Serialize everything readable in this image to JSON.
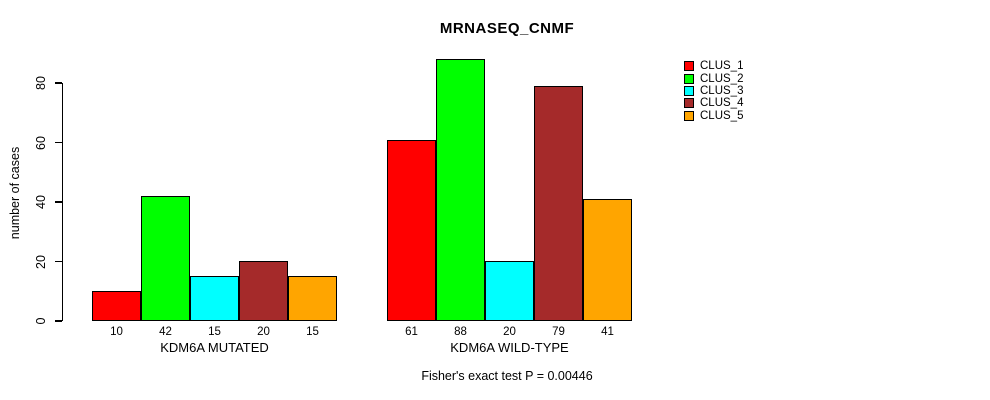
{
  "chart_data": {
    "type": "bar",
    "title": "MRNASEQ_CNMF",
    "ylabel": "number of cases",
    "xlabel": "",
    "categories": [
      "KDM6A MUTATED",
      "KDM6A WILD-TYPE"
    ],
    "series": [
      {
        "name": "CLUS_1",
        "color": "#ff0000",
        "values": [
          10,
          61
        ]
      },
      {
        "name": "CLUS_2",
        "color": "#00ff00",
        "values": [
          42,
          88
        ]
      },
      {
        "name": "CLUS_3",
        "color": "#00ffff",
        "values": [
          15,
          20
        ]
      },
      {
        "name": "CLUS_4",
        "color": "#a52a2a",
        "values": [
          20,
          79
        ]
      },
      {
        "name": "CLUS_5",
        "color": "#ffa500",
        "values": [
          15,
          41
        ]
      }
    ],
    "yticks": [
      0,
      20,
      40,
      60,
      80
    ],
    "ylim": [
      0,
      88
    ],
    "grid": false,
    "bar_value_labels_shown": true,
    "legend_position": "top-right",
    "annotation": "Fisher's exact test P = 0.00446",
    "axis_color": "#000000",
    "background_color": "#ffffff"
  }
}
